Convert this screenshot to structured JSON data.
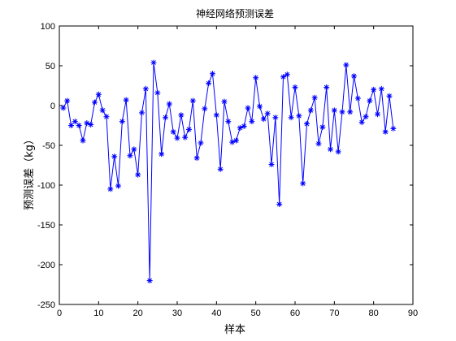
{
  "chart_data": {
    "type": "line",
    "title": "神经网络预测误差",
    "xlabel": "样本",
    "ylabel": "预测误差（kg）",
    "xlim": [
      0,
      90
    ],
    "ylim": [
      -250,
      100
    ],
    "xticks": [
      0,
      10,
      20,
      30,
      40,
      50,
      60,
      70,
      80,
      90
    ],
    "yticks": [
      100,
      50,
      0,
      -50,
      -100,
      -150,
      -200,
      -250
    ],
    "grid": false,
    "legend": "none",
    "marker": "asterisk",
    "colors": {
      "series": "#0000ff",
      "axes": "#000000",
      "background": "#ffffff"
    },
    "series": [
      {
        "x": [
          1,
          2,
          3,
          4,
          5,
          6,
          7,
          8,
          9,
          10,
          11,
          12,
          13,
          14,
          15,
          16,
          17,
          18,
          19,
          20,
          21,
          22,
          23,
          24,
          25,
          26,
          27,
          28,
          29,
          30,
          31,
          32,
          33,
          34,
          35,
          36,
          37,
          38,
          39,
          40,
          41,
          42,
          43,
          44,
          45,
          46,
          47,
          48,
          49,
          50,
          51,
          52,
          53,
          54,
          55,
          56,
          57,
          58,
          59,
          60,
          61,
          62,
          63,
          64,
          65,
          66,
          67,
          68,
          69,
          70,
          71,
          72,
          73,
          74,
          75,
          76,
          77,
          78,
          79,
          80,
          81,
          82,
          83,
          84,
          85
        ],
        "values": [
          -3,
          6,
          -25,
          -20,
          -25,
          -44,
          -22,
          -24,
          4,
          14,
          -6,
          -14,
          -105,
          -64,
          -101,
          -20,
          7,
          -63,
          -55,
          -87,
          -9,
          21,
          -220,
          54,
          16,
          -61,
          -15,
          2,
          -33,
          -41,
          -12,
          -40,
          -30,
          6,
          -66,
          -47,
          -4,
          28,
          40,
          -12,
          -80,
          5,
          -20,
          -46,
          -44,
          -28,
          -26,
          -3,
          -20,
          35,
          -1,
          -17,
          -10,
          -74,
          -15,
          -124,
          36,
          39,
          -15,
          23,
          -13,
          -98,
          -23,
          -6,
          10,
          -48,
          -27,
          23,
          -55,
          -6,
          -58,
          -8,
          51,
          -8,
          37,
          9,
          -21,
          -14,
          6,
          20,
          -11,
          21,
          -33,
          12,
          -29
        ]
      }
    ]
  }
}
